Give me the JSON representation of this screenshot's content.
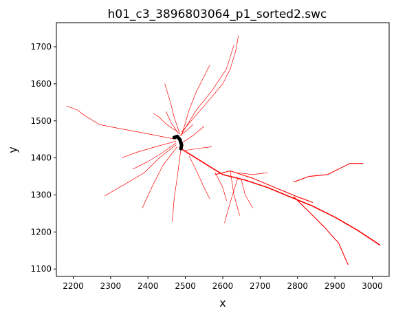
{
  "chart_data": {
    "type": "line",
    "title": "h01_c3_3896803064_p1_sorted2.swc",
    "xlabel": "x",
    "ylabel": "y",
    "xlim": [
      2155,
      3045
    ],
    "ylim": [
      1080,
      1765
    ],
    "xticks": [
      2200,
      2300,
      2400,
      2500,
      2600,
      2700,
      2800,
      2900,
      3000
    ],
    "yticks": [
      1100,
      1200,
      1300,
      1400,
      1500,
      1600,
      1700
    ],
    "grid": false,
    "branch_color": "#ff0000",
    "soma_color": "#000000",
    "soma": {
      "x": [
        2470,
        2478,
        2485,
        2490,
        2488
      ],
      "y": [
        1455,
        1458,
        1450,
        1435,
        1425
      ]
    },
    "series": [
      {
        "x": [
          2488,
          2520,
          2560,
          2600,
          2660,
          2720,
          2780,
          2840,
          2900,
          2960,
          3020
        ],
        "y": [
          1425,
          1405,
          1380,
          1355,
          1340,
          1320,
          1295,
          1270,
          1240,
          1205,
          1165
        ]
      },
      {
        "x": [
          2790,
          2830,
          2870,
          2910,
          2935
        ],
        "y": [
          1295,
          1255,
          1215,
          1170,
          1112
        ]
      },
      {
        "x": [
          2790,
          2830,
          2880,
          2940,
          2975
        ],
        "y": [
          1335,
          1350,
          1355,
          1385,
          1385
        ]
      },
      {
        "x": [
          2580,
          2620,
          2680,
          2740,
          2800,
          2840
        ],
        "y": [
          1355,
          1365,
          1345,
          1320,
          1295,
          1280
        ]
      },
      {
        "x": [
          2640,
          2680,
          2720
        ],
        "y": [
          1360,
          1355,
          1360
        ]
      },
      {
        "x": [
          2650,
          2660,
          2680
        ],
        "y": [
          1340,
          1300,
          1265
        ]
      },
      {
        "x": [
          2640,
          2620,
          2605
        ],
        "y": [
          1345,
          1280,
          1225
        ]
      },
      {
        "x": [
          2580,
          2600,
          2610
        ],
        "y": [
          1360,
          1320,
          1285
        ]
      },
      {
        "x": [
          2620,
          2630,
          2645
        ],
        "y": [
          1365,
          1300,
          1245
        ]
      },
      {
        "x": [
          2475,
          2400,
          2320,
          2270,
          2230,
          2210,
          2182
        ],
        "y": [
          1450,
          1465,
          1480,
          1490,
          1515,
          1530,
          1540
        ]
      },
      {
        "x": [
          2475,
          2420,
          2370,
          2330
        ],
        "y": [
          1445,
          1430,
          1415,
          1400
        ]
      },
      {
        "x": [
          2475,
          2440,
          2400,
          2360
        ],
        "y": [
          1440,
          1415,
          1390,
          1370
        ]
      },
      {
        "x": [
          2475,
          2430,
          2390,
          2340,
          2285
        ],
        "y": [
          1435,
          1400,
          1360,
          1330,
          1298
        ]
      },
      {
        "x": [
          2478,
          2440,
          2410,
          2385
        ],
        "y": [
          1430,
          1380,
          1320,
          1265
        ]
      },
      {
        "x": [
          2490,
          2510,
          2530,
          2550,
          2565
        ],
        "y": [
          1460,
          1530,
          1580,
          1620,
          1650
        ]
      },
      {
        "x": [
          2490,
          2530,
          2570,
          2610,
          2630
        ],
        "y": [
          1465,
          1530,
          1580,
          1640,
          1705
        ]
      },
      {
        "x": [
          2490,
          2550,
          2600,
          2620,
          2635,
          2642
        ],
        "y": [
          1470,
          1540,
          1600,
          1640,
          1690,
          1730
        ]
      },
      {
        "x": [
          2485,
          2470,
          2460,
          2445
        ],
        "y": [
          1465,
          1510,
          1550,
          1600
        ]
      },
      {
        "x": [
          2480,
          2450,
          2430,
          2415
        ],
        "y": [
          1470,
          1490,
          1510,
          1520
        ]
      },
      {
        "x": [
          2482,
          2462,
          2448
        ],
        "y": [
          1465,
          1495,
          1525
        ]
      },
      {
        "x": [
          2490,
          2520,
          2550
        ],
        "y": [
          1440,
          1460,
          1485
        ]
      },
      {
        "x": [
          2500,
          2530,
          2570
        ],
        "y": [
          1420,
          1425,
          1430
        ]
      },
      {
        "x": [
          2488,
          2480,
          2470,
          2465
        ],
        "y": [
          1425,
          1360,
          1290,
          1228
        ]
      },
      {
        "x": [
          2510,
          2530,
          2550,
          2565
        ],
        "y": [
          1405,
          1365,
          1320,
          1290
        ]
      },
      {
        "x": [
          2485,
          2505,
          2520
        ],
        "y": [
          1460,
          1475,
          1490
        ]
      }
    ]
  }
}
